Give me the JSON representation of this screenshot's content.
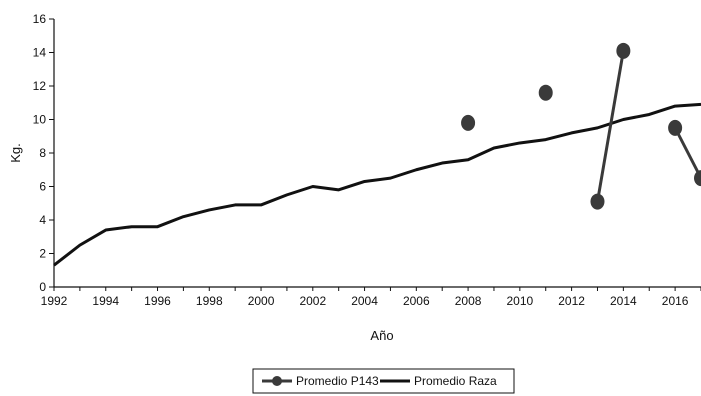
{
  "chart_data": {
    "type": "line",
    "title": "",
    "xlabel": "Año",
    "ylabel": "Kg.",
    "xlim": [
      1992,
      2017
    ],
    "ylim": [
      0,
      16
    ],
    "x_ticks": [
      1992,
      1994,
      1996,
      1998,
      2000,
      2002,
      2004,
      2006,
      2008,
      2010,
      2012,
      2014,
      2016
    ],
    "y_ticks": [
      0,
      2,
      4,
      6,
      8,
      10,
      12,
      14,
      16
    ],
    "grid": false,
    "legend_position": "bottom",
    "series": [
      {
        "name": "Promedio P143",
        "color": "#3a3a3a",
        "marker": "circle",
        "segments": [
          [
            [
              2008,
              9.8
            ]
          ],
          [
            [
              2011,
              11.6
            ]
          ],
          [
            [
              2013,
              5.1
            ],
            [
              2014,
              14.1
            ]
          ],
          [
            [
              2016,
              9.5
            ],
            [
              2017,
              6.5
            ]
          ]
        ]
      },
      {
        "name": "Promedio Raza",
        "color": "#111111",
        "marker": "none",
        "x": [
          1992,
          1993,
          1994,
          1995,
          1996,
          1997,
          1998,
          1999,
          2000,
          2001,
          2002,
          2003,
          2004,
          2005,
          2006,
          2007,
          2008,
          2009,
          2010,
          2011,
          2012,
          2013,
          2014,
          2015,
          2016,
          2017
        ],
        "values": [
          1.3,
          2.5,
          3.4,
          3.6,
          3.6,
          4.2,
          4.6,
          4.9,
          4.9,
          5.5,
          6.0,
          5.8,
          6.3,
          6.5,
          7.0,
          7.4,
          7.6,
          8.3,
          8.6,
          8.8,
          9.2,
          9.5,
          10.0,
          10.3,
          10.8,
          10.9
        ]
      }
    ]
  }
}
